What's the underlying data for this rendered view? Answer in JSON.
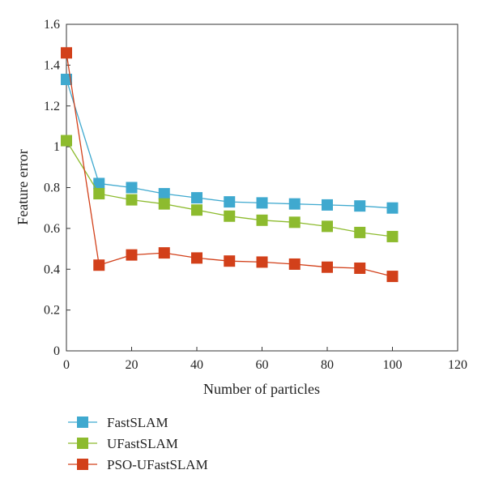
{
  "chart_data": {
    "type": "line",
    "title": "",
    "xlabel": "Number of particles",
    "ylabel": "Feature error",
    "xlim": [
      0,
      120
    ],
    "ylim": [
      0,
      1.6
    ],
    "xticks": [
      0,
      20,
      40,
      60,
      80,
      100,
      120
    ],
    "yticks": [
      0,
      0.2,
      0.4,
      0.6,
      0.8,
      1,
      1.2,
      1.4,
      1.6
    ],
    "ytick_labels": [
      "0",
      "0.2",
      "0.4",
      "0.6",
      "0.8",
      "1",
      "1.2",
      "1.4",
      "1.6"
    ],
    "grid": false,
    "legend_position": "bottom-left-outside",
    "x": [
      0,
      10,
      20,
      30,
      40,
      50,
      60,
      70,
      80,
      90,
      100
    ],
    "series": [
      {
        "name": "FastSLAM",
        "color": "#3fa9cf",
        "marker": "square",
        "values": [
          1.33,
          0.82,
          0.8,
          0.77,
          0.75,
          0.73,
          0.725,
          0.72,
          0.715,
          0.71,
          0.7
        ]
      },
      {
        "name": "UFastSLAM",
        "color": "#8dbb2e",
        "marker": "square",
        "values": [
          1.03,
          0.77,
          0.74,
          0.72,
          0.69,
          0.66,
          0.64,
          0.63,
          0.61,
          0.58,
          0.56
        ]
      },
      {
        "name": "PSO-UFastSLAM",
        "color": "#d2401a",
        "marker": "square",
        "values": [
          1.46,
          0.42,
          0.47,
          0.48,
          0.455,
          0.44,
          0.435,
          0.425,
          0.41,
          0.405,
          0.365
        ]
      }
    ]
  }
}
